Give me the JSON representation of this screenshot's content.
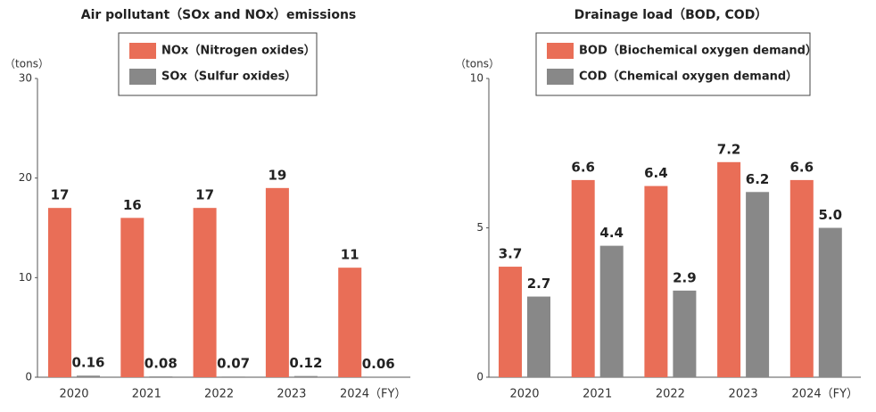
{
  "chart_data": [
    {
      "type": "bar",
      "title": "Air pollutant（SOx and NOx）emissions",
      "y_label": "（tons）",
      "categories": [
        "2020",
        "2021",
        "2022",
        "2023",
        "2024（FY）"
      ],
      "series": [
        {
          "name": "NOx（Nitrogen oxides）",
          "color": "#e96e57",
          "values": [
            17,
            16,
            17,
            19,
            11
          ]
        },
        {
          "name": "SOx（Sulfur oxides）",
          "color": "#888888",
          "values": [
            0.16,
            0.08,
            0.07,
            0.12,
            0.06
          ]
        }
      ],
      "ylim": [
        0,
        30
      ],
      "yticks": [
        0,
        10,
        20,
        30
      ],
      "grid": false
    },
    {
      "type": "bar",
      "title": "Drainage load（BOD, COD）",
      "y_label": "（tons）",
      "categories": [
        "2020",
        "2021",
        "2022",
        "2023",
        "2024（FY）"
      ],
      "series": [
        {
          "name": "BOD（Biochemical oxygen demand）",
          "color": "#e96e57",
          "values": [
            3.7,
            6.6,
            6.4,
            7.2,
            6.6
          ]
        },
        {
          "name": "COD（Chemical oxygen demand）",
          "color": "#888888",
          "values": [
            2.7,
            4.4,
            2.9,
            6.2,
            5.0
          ],
          "value_labels": [
            "2.7",
            "4.4",
            "2.9",
            "6.2",
            "5.0"
          ]
        }
      ],
      "ylim": [
        0,
        10
      ],
      "yticks": [
        0,
        5,
        10
      ],
      "grid": false
    }
  ]
}
